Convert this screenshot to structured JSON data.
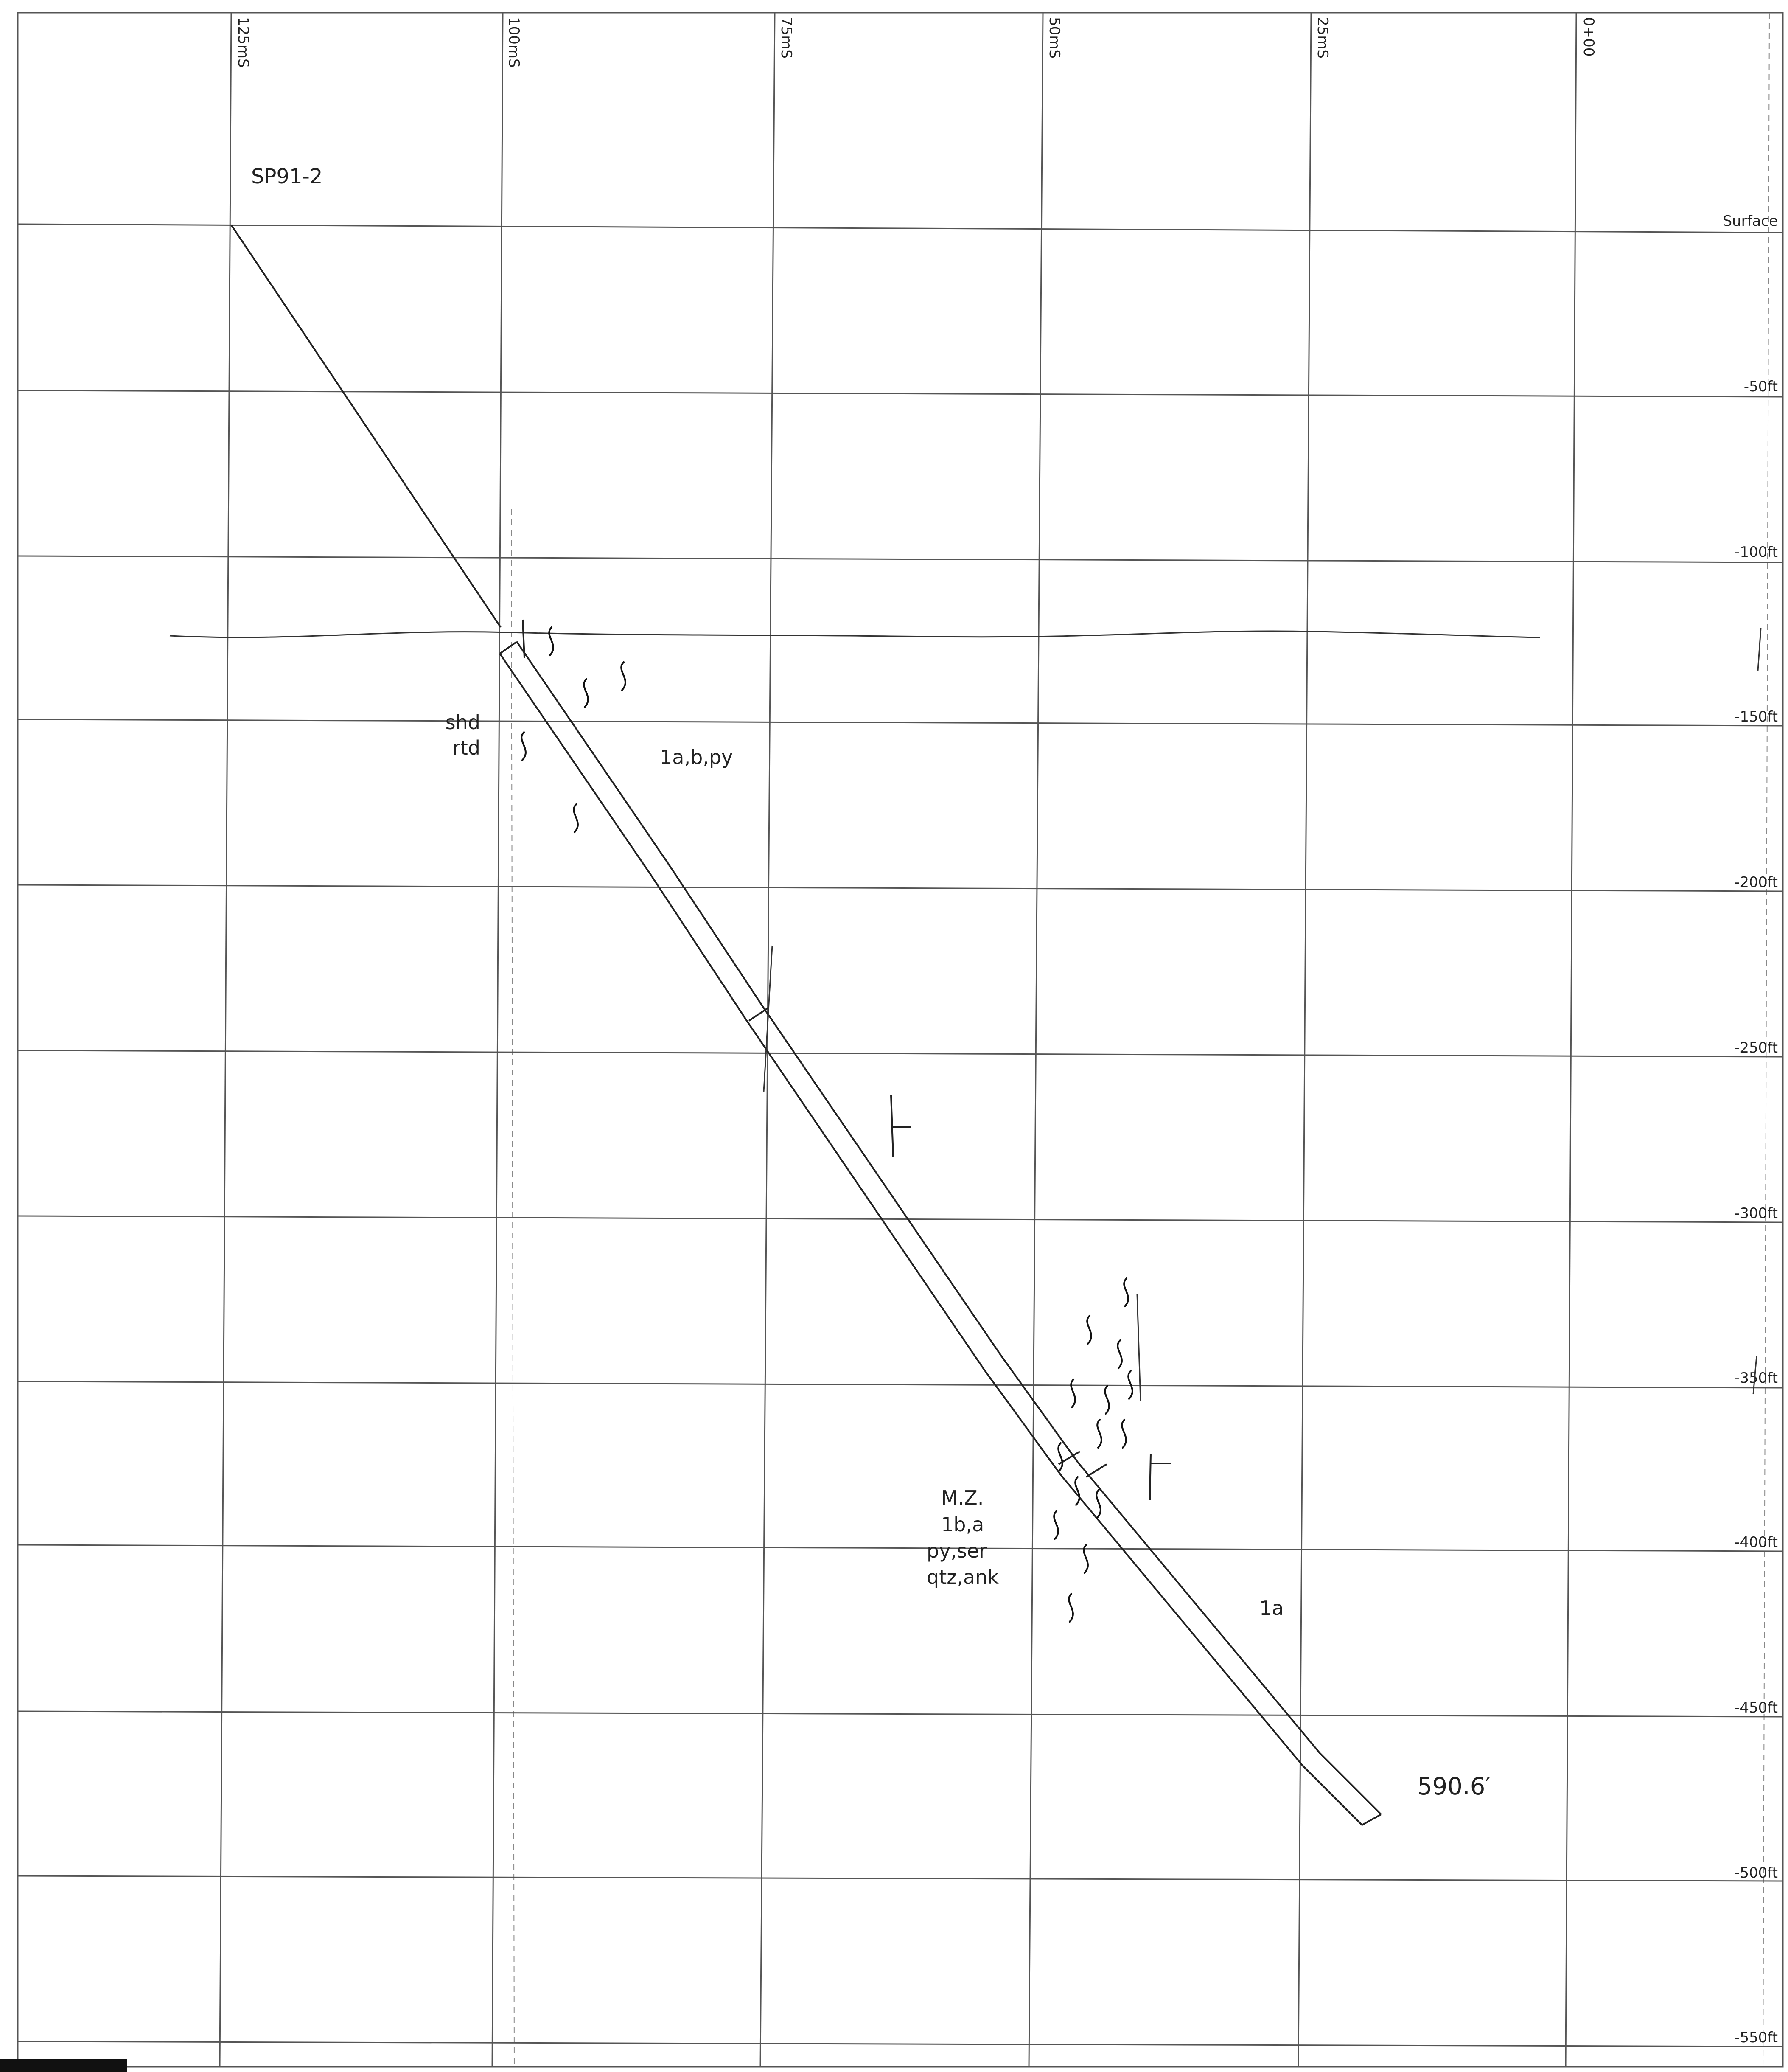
{
  "drillhole": {
    "name": "SP91-2",
    "end_depth": "590.6′"
  },
  "columns": [
    "125mS",
    "100mS",
    "75mS",
    "50mS",
    "25mS",
    "0+00"
  ],
  "depth_labels": [
    "Surface",
    "-50ft",
    "-100ft",
    "-150ft",
    "-200ft",
    "-250ft",
    "-300ft",
    "-350ft",
    "-400ft",
    "-450ft",
    "-500ft",
    "-550ft"
  ],
  "annotations": {
    "upper_left_1": "shd",
    "upper_left_2": "rtd",
    "upper_unit": "1a,b,py",
    "mz_1": "M.Z.",
    "mz_2": "1b,a",
    "mz_3": "py,ser",
    "mz_4": "qtz,ank",
    "lower_unit": "1a"
  },
  "colors": {
    "ink": "#222222",
    "paper": "#ffffff",
    "grid": "#555555"
  }
}
